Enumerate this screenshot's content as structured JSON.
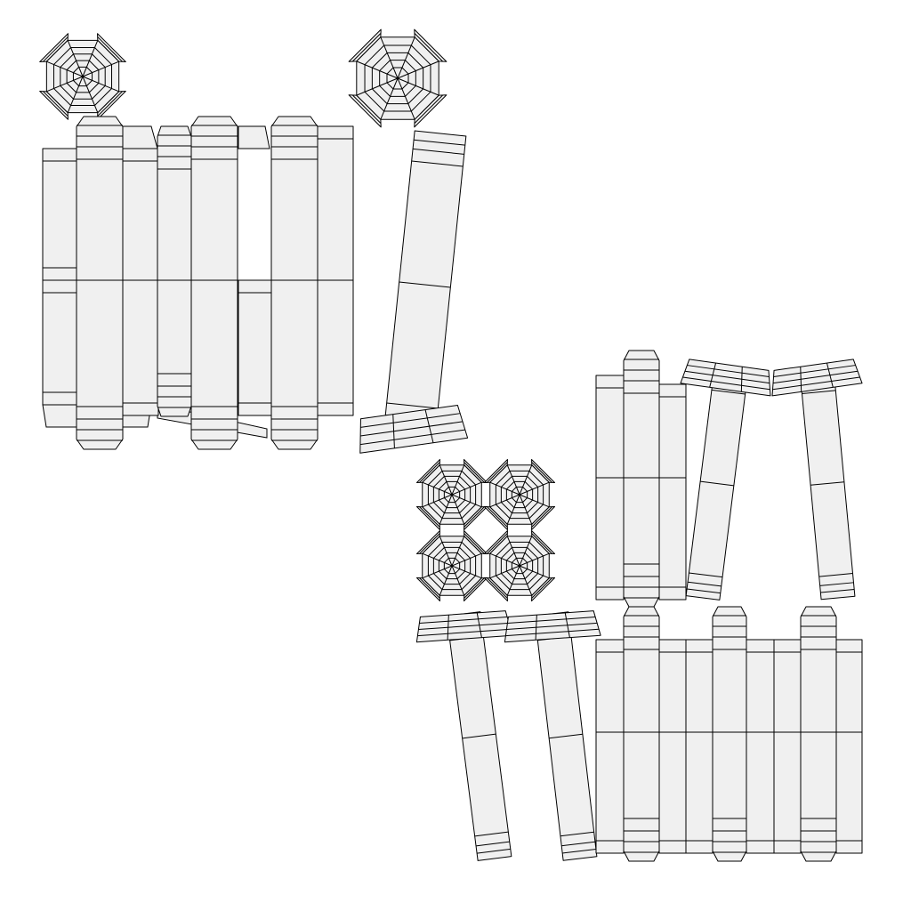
{
  "diagram": {
    "type": "uv-unwrap-layout",
    "colors": {
      "background": "#ffffff",
      "face_fill": "#f0f0f0",
      "edge_stroke": "#000000"
    },
    "groups": [
      {
        "name": "upper-left-cluster",
        "islands": [
          "octagon-cap",
          "octagon-cap",
          "panel-strip",
          "panel-strip",
          "panel-strip",
          "leaning-strip"
        ]
      },
      {
        "name": "lower-right-cluster",
        "islands": [
          "octagon-cap",
          "octagon-cap",
          "octagon-cap",
          "octagon-cap",
          "panel-strip",
          "panel-strip",
          "panel-strip",
          "panel-strip",
          "leaning-strip",
          "leaning-strip",
          "leaning-strip",
          "leaning-strip"
        ]
      }
    ]
  }
}
